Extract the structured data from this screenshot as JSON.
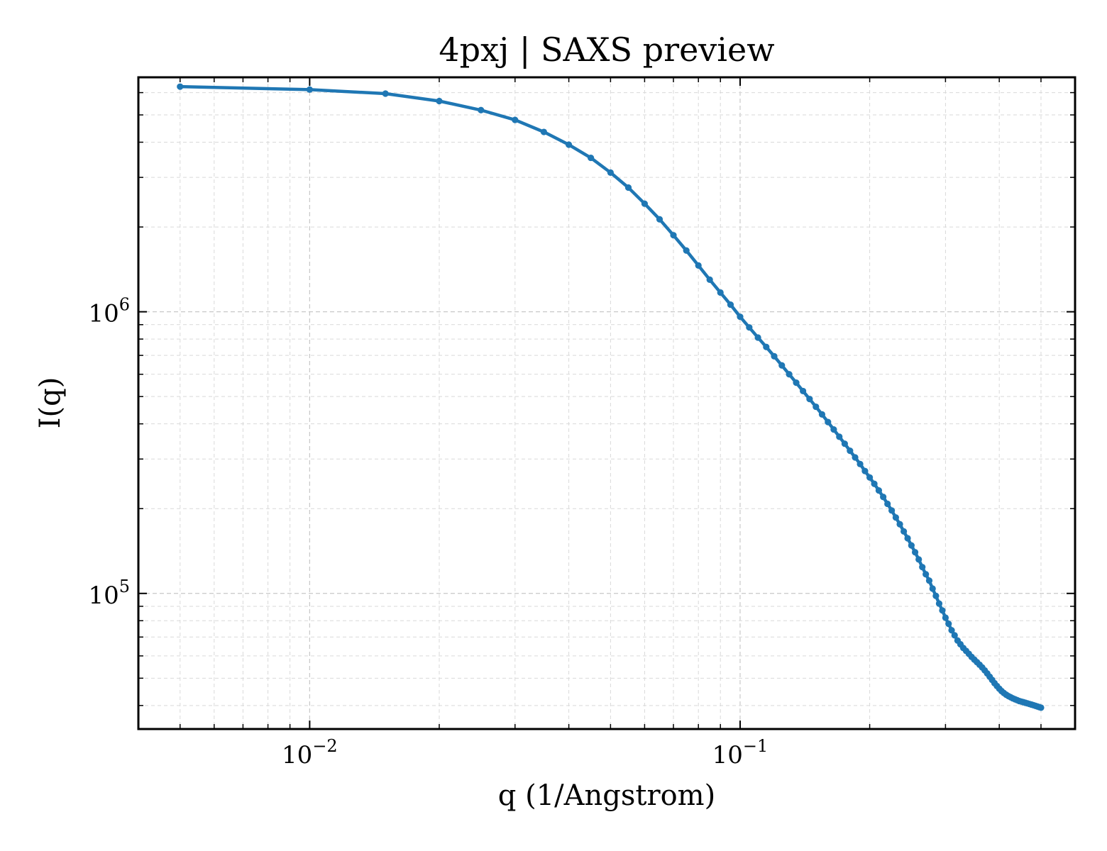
{
  "chart_data": {
    "type": "line",
    "title": "4pxj | SAXS preview",
    "xlabel": "q (1/Angstrom)",
    "ylabel": "I(q)",
    "xscale": "log",
    "yscale": "log",
    "xlim": [
      0.004,
      0.6
    ],
    "ylim": [
      33000,
      6800000
    ],
    "grid": true,
    "xticks": [
      {
        "base": "10",
        "exp": "−2",
        "value": 0.01
      },
      {
        "base": "10",
        "exp": "−1",
        "value": 0.1
      }
    ],
    "yticks": [
      {
        "base": "10",
        "exp": "5",
        "value": 100000
      },
      {
        "base": "10",
        "exp": "6",
        "value": 1000000
      }
    ],
    "series": [
      {
        "color": "#1f77b4",
        "marker": "circle",
        "x": [
          0.005,
          0.01,
          0.015,
          0.02,
          0.025,
          0.03,
          0.035,
          0.04,
          0.045,
          0.05,
          0.055,
          0.06,
          0.065,
          0.07,
          0.075,
          0.08,
          0.085,
          0.09,
          0.095,
          0.1,
          0.105,
          0.11,
          0.115,
          0.12,
          0.125,
          0.13,
          0.135,
          0.14,
          0.145,
          0.15,
          0.155,
          0.16,
          0.165,
          0.17,
          0.175,
          0.18,
          0.185,
          0.19,
          0.195,
          0.2,
          0.205,
          0.21,
          0.215,
          0.22,
          0.225,
          0.23,
          0.235,
          0.24,
          0.245,
          0.25,
          0.255,
          0.26,
          0.265,
          0.27,
          0.275,
          0.28,
          0.285,
          0.29,
          0.295,
          0.3,
          0.305,
          0.31,
          0.315,
          0.32,
          0.325,
          0.33,
          0.335,
          0.34,
          0.345,
          0.35,
          0.355,
          0.36,
          0.365,
          0.37,
          0.375,
          0.38,
          0.385,
          0.39,
          0.395,
          0.4,
          0.405,
          0.41,
          0.415,
          0.42,
          0.425,
          0.43,
          0.435,
          0.44,
          0.445,
          0.45,
          0.455,
          0.46,
          0.465,
          0.47,
          0.475,
          0.48,
          0.485,
          0.49,
          0.495,
          0.5
        ],
        "y": [
          6300000,
          6150000,
          5950000,
          5600000,
          5200000,
          4800000,
          4350000,
          3920000,
          3520000,
          3120000,
          2760000,
          2420000,
          2130000,
          1870000,
          1650000,
          1460000,
          1300000,
          1170000,
          1060000,
          960000,
          880000,
          810000,
          750000,
          695000,
          645000,
          600000,
          560000,
          523000,
          490000,
          460000,
          432000,
          406000,
          382000,
          360000,
          340000,
          321000,
          304000,
          288000,
          272000,
          258000,
          245000,
          232000,
          220000,
          208000,
          197000,
          186000,
          176000,
          166000,
          157000,
          148000,
          140000,
          132000,
          124000,
          117000,
          111000,
          104000,
          98000,
          92000,
          87000,
          82000,
          78000,
          74000,
          71000,
          68000,
          66000,
          64000,
          62500,
          61000,
          59500,
          58200,
          57000,
          55800,
          54600,
          53300,
          52000,
          50600,
          49300,
          48000,
          46900,
          45900,
          45000,
          44300,
          43700,
          43200,
          42800,
          42400,
          42100,
          41800,
          41500,
          41300,
          41100,
          40900,
          40700,
          40500,
          40300,
          40100,
          39900,
          39700,
          39500,
          39300
        ]
      }
    ]
  }
}
